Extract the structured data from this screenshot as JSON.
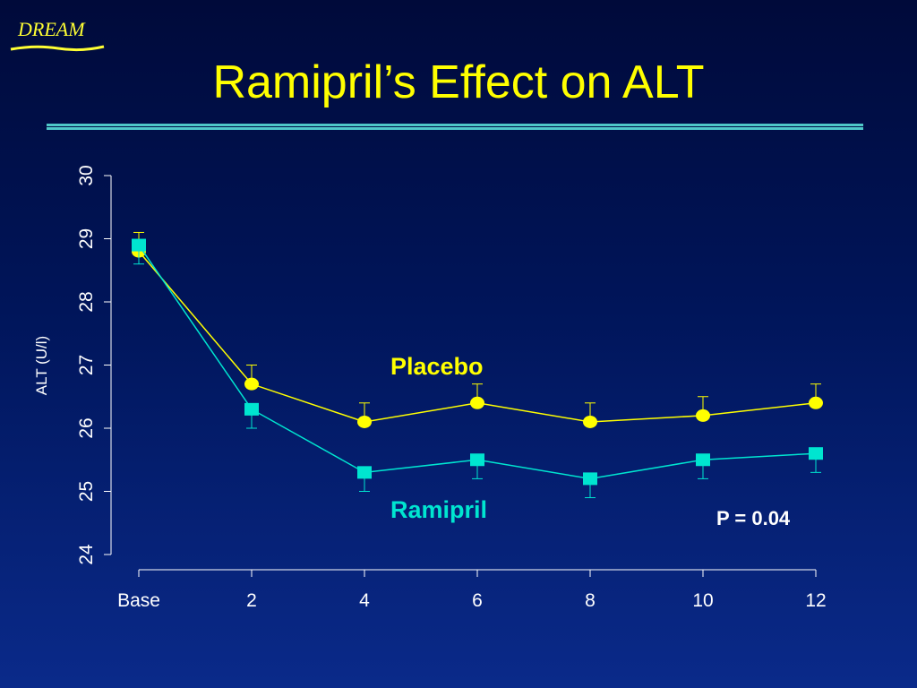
{
  "logo": {
    "text": "DREAM"
  },
  "title": "Ramipril’s Effect on ALT",
  "colors": {
    "accent": "#ffff00",
    "placebo": "#ffff00",
    "ramipril": "#00e5d0",
    "axis": "#ffffff",
    "rule": "#4fc8c8"
  },
  "chart_data": {
    "type": "line",
    "title": "",
    "ylabel": "ALT (U/l)",
    "xlabel": "",
    "ylim": [
      24,
      30
    ],
    "yticks": [
      24,
      25,
      26,
      27,
      28,
      29,
      30
    ],
    "categories": [
      "Base",
      "2",
      "4",
      "6",
      "8",
      "10",
      "12"
    ],
    "series": [
      {
        "name": "Placebo",
        "marker": "circle",
        "color": "#ffff00",
        "values": [
          28.8,
          26.7,
          26.1,
          26.4,
          26.1,
          26.2,
          26.4
        ],
        "error": [
          0.3,
          0.3,
          0.3,
          0.3,
          0.3,
          0.3,
          0.3
        ]
      },
      {
        "name": "Ramipril",
        "marker": "square",
        "color": "#00e5d0",
        "values": [
          28.9,
          26.3,
          25.3,
          25.5,
          25.2,
          25.5,
          25.6
        ],
        "error": [
          0.3,
          0.3,
          0.3,
          0.3,
          0.3,
          0.3,
          0.3
        ]
      }
    ],
    "annotations": [
      "P = 0.04"
    ]
  }
}
